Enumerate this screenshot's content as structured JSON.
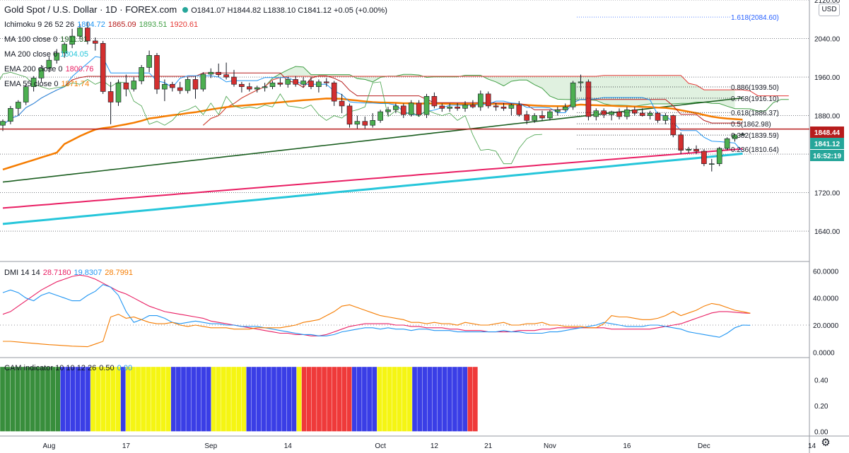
{
  "header": {
    "symbol": "Gold Spot / U.S. Dollar · 1D · FOREX.com",
    "ohlc": "O1841.07 H1844.82 L1838.10 C1841.12 +0.05 (+0.00%)",
    "indicators": [
      {
        "name": "Ichimoku 9 26 52 26",
        "values": [
          "1804.72",
          "1865.09",
          "1893.51",
          "1920.61"
        ],
        "colors": [
          "#2196f3",
          "#b71c1c",
          "#43a047",
          "#e53935"
        ]
      },
      {
        "name": "MA 100 close 0",
        "values": [
          "1911.31"
        ],
        "colors": [
          "#1b5e20"
        ]
      },
      {
        "name": "MA 200 close 0",
        "values": [
          "1804.05"
        ],
        "colors": [
          "#26c6da"
        ]
      },
      {
        "name": "EMA 200 close 0",
        "values": [
          "1800.76"
        ],
        "colors": [
          "#e91e63"
        ]
      },
      {
        "name": "EMA 55 close 0",
        "values": [
          "1871.74"
        ],
        "colors": [
          "#f57c00"
        ]
      }
    ],
    "dmi": {
      "name": "DMI 14 14",
      "values": [
        "28.7180",
        "19.8307",
        "28.7991"
      ],
      "colors": [
        "#e91e63",
        "#2196f3",
        "#f57c00"
      ]
    },
    "cam": {
      "name": "CAM indicator 10 10 12 26",
      "values": [
        "0.50",
        "0.00"
      ],
      "colors": [
        "#131722",
        "#2196f3"
      ]
    }
  },
  "currency_button": "USD",
  "settings_icon": "gear-icon",
  "price_labels": [
    {
      "text": "1848.44",
      "bg": "#b71c1c"
    },
    {
      "text": "1841.12",
      "bg": "#26a69a"
    },
    {
      "text": "16:52:19",
      "bg": "#26a69a"
    }
  ],
  "fib_levels": [
    {
      "label": "1.618(2084.60)",
      "price": 2084.6,
      "color": "#2962ff"
    },
    {
      "label": "0.886(1939.50)",
      "price": 1939.5,
      "color": "#131722"
    },
    {
      "label": "0.768(1916.10)",
      "price": 1916.1,
      "color": "#131722"
    },
    {
      "label": "0.618(1886.37)",
      "price": 1886.37,
      "color": "#131722"
    },
    {
      "label": "0.5(1862.98)",
      "price": 1862.98,
      "color": "#131722"
    },
    {
      "label": "0.382(1839.59)",
      "price": 1839.59,
      "color": "#131722"
    },
    {
      "label": "0.236(1810.64)",
      "price": 1810.64,
      "color": "#131722"
    }
  ],
  "chart_data": [
    {
      "type": "candlestick",
      "title": "Gold Spot / U.S. Dollar 1D",
      "y_ticks": [
        "2120.00",
        "2040.00",
        "1960.00",
        "1880.00",
        "1800.00",
        "1720.00",
        "1640.00"
      ],
      "ylim": [
        1580,
        2120
      ],
      "x_ticks": [
        "Aug",
        "17",
        "Sep",
        "14",
        "Oct",
        "12",
        "21",
        "Nov",
        "16",
        "Dec",
        "14"
      ],
      "candles": [
        {
          "o": 1860,
          "h": 1872,
          "l": 1848,
          "c": 1868
        },
        {
          "o": 1868,
          "h": 1900,
          "l": 1862,
          "c": 1895
        },
        {
          "o": 1895,
          "h": 1912,
          "l": 1880,
          "c": 1908
        },
        {
          "o": 1908,
          "h": 1945,
          "l": 1902,
          "c": 1940
        },
        {
          "o": 1940,
          "h": 1962,
          "l": 1930,
          "c": 1958
        },
        {
          "o": 1958,
          "h": 1985,
          "l": 1950,
          "c": 1978
        },
        {
          "o": 1978,
          "h": 2002,
          "l": 1970,
          "c": 1995
        },
        {
          "o": 1995,
          "h": 2018,
          "l": 1988,
          "c": 2010
        },
        {
          "o": 2010,
          "h": 2032,
          "l": 2000,
          "c": 2028
        },
        {
          "o": 2028,
          "h": 2060,
          "l": 2020,
          "c": 2045
        },
        {
          "o": 2045,
          "h": 2070,
          "l": 2038,
          "c": 2062
        },
        {
          "o": 2062,
          "h": 2075,
          "l": 2028,
          "c": 2035
        },
        {
          "o": 2035,
          "h": 2042,
          "l": 2015,
          "c": 2030
        },
        {
          "o": 2030,
          "h": 2035,
          "l": 1925,
          "c": 1930
        },
        {
          "o": 1930,
          "h": 1950,
          "l": 1862,
          "c": 1908
        },
        {
          "o": 1908,
          "h": 1955,
          "l": 1900,
          "c": 1948
        },
        {
          "o": 1948,
          "h": 1965,
          "l": 1920,
          "c": 1935
        },
        {
          "o": 1935,
          "h": 1960,
          "l": 1930,
          "c": 1952
        },
        {
          "o": 1952,
          "h": 1985,
          "l": 1945,
          "c": 1980
        },
        {
          "o": 1980,
          "h": 2015,
          "l": 1970,
          "c": 2005
        },
        {
          "o": 2005,
          "h": 2010,
          "l": 1925,
          "c": 1935
        },
        {
          "o": 1935,
          "h": 1955,
          "l": 1910,
          "c": 1945
        },
        {
          "o": 1945,
          "h": 1950,
          "l": 1930,
          "c": 1938
        },
        {
          "o": 1938,
          "h": 1950,
          "l": 1925,
          "c": 1932
        },
        {
          "o": 1932,
          "h": 1960,
          "l": 1926,
          "c": 1955
        },
        {
          "o": 1955,
          "h": 1962,
          "l": 1915,
          "c": 1935
        },
        {
          "o": 1935,
          "h": 1970,
          "l": 1930,
          "c": 1966
        },
        {
          "o": 1966,
          "h": 1978,
          "l": 1958,
          "c": 1970
        },
        {
          "o": 1970,
          "h": 1988,
          "l": 1960,
          "c": 1965
        },
        {
          "o": 1965,
          "h": 1990,
          "l": 1955,
          "c": 1960
        },
        {
          "o": 1960,
          "h": 1975,
          "l": 1940,
          "c": 1945
        },
        {
          "o": 1945,
          "h": 1950,
          "l": 1928,
          "c": 1940
        },
        {
          "o": 1940,
          "h": 1948,
          "l": 1930,
          "c": 1935
        },
        {
          "o": 1935,
          "h": 1942,
          "l": 1928,
          "c": 1938
        },
        {
          "o": 1938,
          "h": 1948,
          "l": 1930,
          "c": 1940
        },
        {
          "o": 1940,
          "h": 1952,
          "l": 1935,
          "c": 1948
        },
        {
          "o": 1948,
          "h": 1958,
          "l": 1940,
          "c": 1945
        },
        {
          "o": 1945,
          "h": 1960,
          "l": 1938,
          "c": 1955
        },
        {
          "o": 1955,
          "h": 1962,
          "l": 1940,
          "c": 1945
        },
        {
          "o": 1945,
          "h": 1960,
          "l": 1938,
          "c": 1952
        },
        {
          "o": 1952,
          "h": 1960,
          "l": 1935,
          "c": 1940
        },
        {
          "o": 1940,
          "h": 1955,
          "l": 1928,
          "c": 1950
        },
        {
          "o": 1950,
          "h": 1958,
          "l": 1940,
          "c": 1948
        },
        {
          "o": 1948,
          "h": 1952,
          "l": 1900,
          "c": 1910
        },
        {
          "o": 1910,
          "h": 1925,
          "l": 1885,
          "c": 1900
        },
        {
          "o": 1900,
          "h": 1905,
          "l": 1855,
          "c": 1862
        },
        {
          "o": 1862,
          "h": 1880,
          "l": 1852,
          "c": 1868
        },
        {
          "o": 1868,
          "h": 1878,
          "l": 1852,
          "c": 1860
        },
        {
          "o": 1860,
          "h": 1885,
          "l": 1855,
          "c": 1870
        },
        {
          "o": 1870,
          "h": 1892,
          "l": 1865,
          "c": 1888
        },
        {
          "o": 1888,
          "h": 1898,
          "l": 1880,
          "c": 1892
        },
        {
          "o": 1892,
          "h": 1905,
          "l": 1885,
          "c": 1900
        },
        {
          "o": 1900,
          "h": 1905,
          "l": 1875,
          "c": 1882
        },
        {
          "o": 1882,
          "h": 1912,
          "l": 1878,
          "c": 1906
        },
        {
          "o": 1906,
          "h": 1912,
          "l": 1878,
          "c": 1882
        },
        {
          "o": 1882,
          "h": 1925,
          "l": 1875,
          "c": 1920
        },
        {
          "o": 1920,
          "h": 1928,
          "l": 1895,
          "c": 1900
        },
        {
          "o": 1900,
          "h": 1905,
          "l": 1888,
          "c": 1895
        },
        {
          "o": 1895,
          "h": 1905,
          "l": 1888,
          "c": 1898
        },
        {
          "o": 1898,
          "h": 1906,
          "l": 1890,
          "c": 1895
        },
        {
          "o": 1895,
          "h": 1910,
          "l": 1888,
          "c": 1902
        },
        {
          "o": 1902,
          "h": 1912,
          "l": 1895,
          "c": 1898
        },
        {
          "o": 1898,
          "h": 1932,
          "l": 1890,
          "c": 1925
        },
        {
          "o": 1925,
          "h": 1930,
          "l": 1895,
          "c": 1900
        },
        {
          "o": 1900,
          "h": 1906,
          "l": 1890,
          "c": 1898
        },
        {
          "o": 1898,
          "h": 1906,
          "l": 1890,
          "c": 1895
        },
        {
          "o": 1895,
          "h": 1905,
          "l": 1880,
          "c": 1902
        },
        {
          "o": 1902,
          "h": 1910,
          "l": 1878,
          "c": 1882
        },
        {
          "o": 1882,
          "h": 1890,
          "l": 1862,
          "c": 1870
        },
        {
          "o": 1870,
          "h": 1885,
          "l": 1865,
          "c": 1880
        },
        {
          "o": 1880,
          "h": 1890,
          "l": 1870,
          "c": 1875
        },
        {
          "o": 1875,
          "h": 1892,
          "l": 1870,
          "c": 1888
        },
        {
          "o": 1888,
          "h": 1898,
          "l": 1880,
          "c": 1892
        },
        {
          "o": 1892,
          "h": 1905,
          "l": 1888,
          "c": 1898
        },
        {
          "o": 1898,
          "h": 1952,
          "l": 1892,
          "c": 1948
        },
        {
          "o": 1948,
          "h": 1965,
          "l": 1930,
          "c": 1950
        },
        {
          "o": 1950,
          "h": 1955,
          "l": 1870,
          "c": 1878
        },
        {
          "o": 1878,
          "h": 1895,
          "l": 1870,
          "c": 1890
        },
        {
          "o": 1890,
          "h": 1895,
          "l": 1875,
          "c": 1882
        },
        {
          "o": 1882,
          "h": 1890,
          "l": 1870,
          "c": 1888
        },
        {
          "o": 1888,
          "h": 1895,
          "l": 1872,
          "c": 1878
        },
        {
          "o": 1878,
          "h": 1898,
          "l": 1872,
          "c": 1892
        },
        {
          "o": 1892,
          "h": 1898,
          "l": 1880,
          "c": 1885
        },
        {
          "o": 1885,
          "h": 1895,
          "l": 1878,
          "c": 1880
        },
        {
          "o": 1880,
          "h": 1890,
          "l": 1872,
          "c": 1885
        },
        {
          "o": 1885,
          "h": 1888,
          "l": 1865,
          "c": 1870
        },
        {
          "o": 1870,
          "h": 1885,
          "l": 1862,
          "c": 1880
        },
        {
          "o": 1880,
          "h": 1882,
          "l": 1835,
          "c": 1840
        },
        {
          "o": 1840,
          "h": 1845,
          "l": 1800,
          "c": 1808
        },
        {
          "o": 1808,
          "h": 1815,
          "l": 1802,
          "c": 1810
        },
        {
          "o": 1810,
          "h": 1818,
          "l": 1800,
          "c": 1806
        },
        {
          "o": 1806,
          "h": 1810,
          "l": 1775,
          "c": 1780
        },
        {
          "o": 1780,
          "h": 1790,
          "l": 1764,
          "c": 1780
        },
        {
          "o": 1780,
          "h": 1815,
          "l": 1775,
          "c": 1812
        },
        {
          "o": 1812,
          "h": 1835,
          "l": 1808,
          "c": 1832
        },
        {
          "o": 1832,
          "h": 1842,
          "l": 1826,
          "c": 1840
        },
        {
          "o": 1841.07,
          "h": 1844.82,
          "l": 1838.1,
          "c": 1841.12
        }
      ]
    },
    {
      "type": "line",
      "title": "DMI 14 14",
      "y_ticks": [
        "60.0000",
        "40.0000",
        "20.0000",
        "0.0000"
      ],
      "ylim": [
        -3,
        66
      ],
      "series": [
        {
          "name": "ADX",
          "color": "#e91e63",
          "values": [
            28,
            30,
            34,
            38,
            42,
            46,
            49,
            52,
            54,
            56,
            57,
            56,
            54,
            51,
            48,
            45,
            43,
            40,
            37,
            34,
            32,
            30,
            29,
            28,
            27,
            26,
            25,
            23,
            22,
            21,
            20,
            19,
            18,
            17,
            16,
            15,
            14,
            14,
            13,
            13,
            12,
            12,
            13,
            15,
            17,
            19,
            20,
            21,
            21,
            21,
            21,
            20,
            20,
            19,
            19,
            18,
            18,
            18,
            17,
            17,
            16,
            16,
            16,
            15,
            15,
            15,
            15,
            16,
            16,
            16,
            17,
            17,
            18,
            18,
            18,
            18,
            18,
            18,
            18,
            17,
            17,
            17,
            17,
            17,
            17,
            18,
            19,
            20,
            21,
            23,
            25,
            27,
            29,
            30,
            30,
            29.5,
            29,
            28.72
          ]
        },
        {
          "name": "+DI",
          "color": "#2196f3",
          "values": [
            44,
            46,
            44,
            40,
            38,
            42,
            44,
            42,
            40,
            38,
            38,
            42,
            45,
            50,
            48,
            42,
            30,
            22,
            24,
            27,
            27,
            25,
            22,
            21,
            22,
            23,
            22,
            21,
            21,
            20,
            20,
            19,
            19,
            19,
            18,
            17,
            16,
            15,
            14,
            13,
            13,
            12,
            12,
            13,
            15,
            16,
            17,
            18,
            18,
            17,
            18,
            17,
            17,
            16,
            17,
            17,
            16,
            16,
            16,
            15,
            15,
            15,
            15,
            15,
            15,
            16,
            15,
            15,
            14,
            14,
            14,
            15,
            15,
            16,
            17,
            18,
            19,
            20,
            22,
            21,
            20,
            19,
            19,
            19,
            20,
            20,
            19,
            18,
            17,
            15,
            14,
            13,
            12,
            11,
            14,
            18,
            20,
            19.83
          ]
        },
        {
          "name": "-DI",
          "color": "#f57c00",
          "values": [
            8,
            8,
            7.5,
            7,
            6.5,
            6,
            5.5,
            5.2,
            4.8,
            4.4,
            4.2,
            4,
            6,
            8,
            26,
            28,
            25,
            26,
            24,
            22,
            21,
            21,
            22,
            20,
            19,
            20,
            19,
            18,
            18,
            18,
            17,
            17,
            17,
            18,
            18,
            18,
            18,
            19,
            20,
            22,
            23,
            24,
            27,
            30,
            34,
            35,
            33,
            31,
            29,
            27,
            26,
            25,
            24,
            22,
            22,
            21,
            22,
            21,
            21,
            20,
            22,
            21,
            20,
            20,
            21,
            22,
            20,
            20,
            21,
            21,
            22,
            20,
            20,
            19,
            19,
            19,
            18,
            18,
            21,
            27,
            26,
            26,
            25,
            24,
            24,
            25,
            27,
            30,
            27,
            29,
            31,
            34,
            36,
            35,
            33,
            31,
            30,
            28.8
          ]
        }
      ]
    },
    {
      "type": "bar",
      "title": "CAM indicator 10 10 12 26",
      "y_ticks": [
        "0.40",
        "0.20",
        "0.00"
      ],
      "ylim": [
        -0.03,
        0.56
      ],
      "value": 0.5,
      "state_colors": {
        "G": "#388e3c",
        "B": "#3a3ee6",
        "Y": "#f5f513",
        "R": "#ef3a3a"
      },
      "states": "GGGGGGGGGGGGBBBBBBYYYYYYBYYYYYYYYYBBBBBBBBYYYYYYYBBBBBBBBBBYRRRRRRRRRRBBBBBYYYYYYYBBBBBBBBBBBRRRRRRRRRRBBBBBBBBBBBBBBBYYYYYYYRRRRRRRRRRRRBBBBBBBBB"
    }
  ]
}
